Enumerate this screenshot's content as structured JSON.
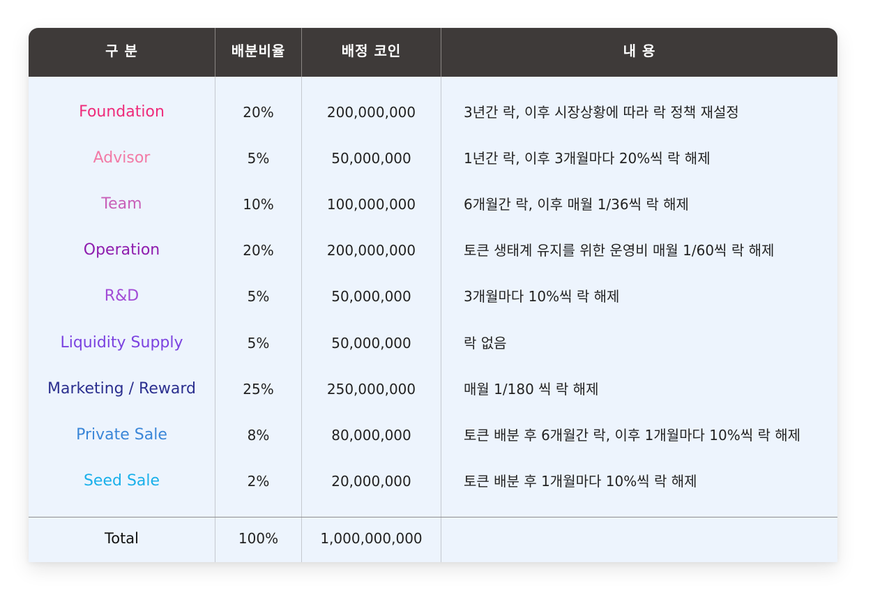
{
  "table": {
    "headers": {
      "category": "구 분",
      "ratio": "배분비율",
      "coins": "배정 코인",
      "content": "내 용"
    },
    "rows": [
      {
        "name": "Foundation",
        "ratio": "20%",
        "coins": "200,000,000",
        "content": "3년간 락, 이후 시장상황에 따라 락 정책 재설정",
        "color": "#ee2b7a"
      },
      {
        "name": "Advisor",
        "ratio": "5%",
        "coins": "50,000,000",
        "content": "1년간 락, 이후 3개월마다 20%씩 락 해제",
        "color": "#f27aa6"
      },
      {
        "name": "Team",
        "ratio": "10%",
        "coins": "100,000,000",
        "content": "6개월간 락, 이후 매월 1/36씩 락 해제",
        "color": "#c85fb8"
      },
      {
        "name": "Operation",
        "ratio": "20%",
        "coins": "200,000,000",
        "content": "토큰 생태계 유지를 위한 운영비 매월 1/60씩 락 해제",
        "color": "#8e1cae"
      },
      {
        "name": "R&D",
        "ratio": "5%",
        "coins": "50,000,000",
        "content": "3개월마다 10%씩 락 해제",
        "color": "#a24bd6"
      },
      {
        "name": "Liquidity Supply",
        "ratio": "5%",
        "coins": "50,000,000",
        "content": "락 없음",
        "color": "#7b42e0"
      },
      {
        "name": "Marketing / Reward",
        "ratio": "25%",
        "coins": "250,000,000",
        "content": "매월 1/180 씩 락 해제",
        "color": "#2b2f8f"
      },
      {
        "name": "Private Sale",
        "ratio": "8%",
        "coins": "80,000,000",
        "content": "토큰 배분 후 6개월간 락, 이후 1개월마다 10%씩 락 해제",
        "color": "#3a86d8"
      },
      {
        "name": "Seed Sale",
        "ratio": "2%",
        "coins": "20,000,000",
        "content": "토큰 배분 후 1개월마다 10%씩 락 해제",
        "color": "#1ab0ea"
      }
    ],
    "total": {
      "name": "Total",
      "ratio": "100%",
      "coins": "1,000,000,000",
      "content": ""
    }
  }
}
